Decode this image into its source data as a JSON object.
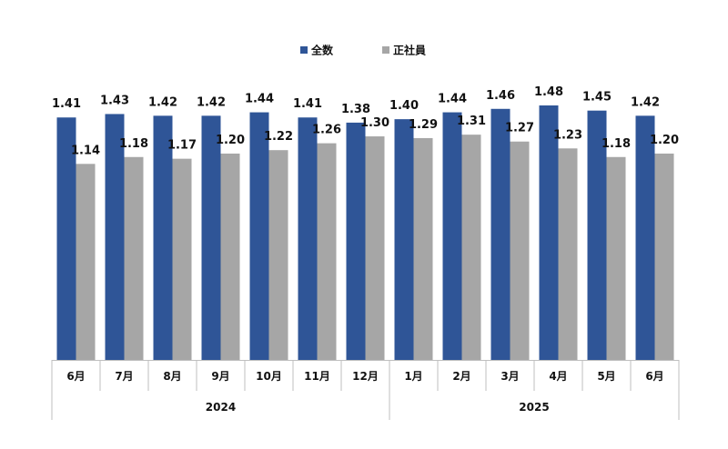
{
  "chart_data": {
    "type": "bar",
    "title": "",
    "xlabel": "",
    "ylabel": "",
    "ylim": [
      0,
      1.48
    ],
    "grid": false,
    "legend_position": "top-center",
    "categories": [
      "6月",
      "7月",
      "8月",
      "9月",
      "10月",
      "11月",
      "12月",
      "1月",
      "2月",
      "3月",
      "4月",
      "5月",
      "6月"
    ],
    "year_groups": [
      {
        "label": "2024",
        "start": 0,
        "end": 6
      },
      {
        "label": "2025",
        "start": 7,
        "end": 12
      }
    ],
    "series": [
      {
        "name": "全数",
        "color": "#2f5597",
        "values": [
          1.41,
          1.43,
          1.42,
          1.42,
          1.44,
          1.41,
          1.38,
          1.4,
          1.44,
          1.46,
          1.48,
          1.45,
          1.42
        ],
        "labels": [
          "1.41",
          "1.43",
          "1.42",
          "1.42",
          "1.44",
          "1.41",
          "1.38",
          "1.40",
          "1.44",
          "1.46",
          "1.48",
          "1.45",
          "1.42"
        ]
      },
      {
        "name": "正社員",
        "color": "#a6a6a6",
        "values": [
          1.14,
          1.18,
          1.17,
          1.2,
          1.22,
          1.26,
          1.3,
          1.29,
          1.31,
          1.27,
          1.23,
          1.18,
          1.2
        ],
        "labels": [
          "1.14",
          "1.18",
          "1.17",
          "1.20",
          "1.22",
          "1.26",
          "1.30",
          "1.29",
          "1.31",
          "1.27",
          "1.23",
          "1.18",
          "1.20"
        ]
      }
    ]
  }
}
